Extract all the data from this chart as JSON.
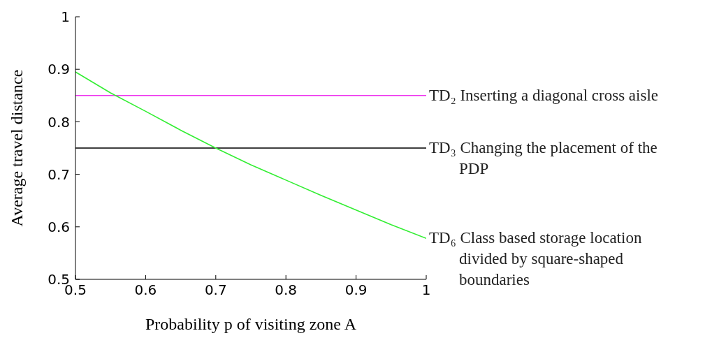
{
  "chart_data": {
    "type": "line",
    "xlabel": "Probability p of visiting zone A",
    "ylabel": "Average travel distance",
    "xlim": [
      0.5,
      1
    ],
    "ylim": [
      0.5,
      1
    ],
    "xticks": [
      0.5,
      0.6,
      0.7,
      0.8,
      0.9,
      1
    ],
    "yticks": [
      0.5,
      0.6,
      0.7,
      0.8,
      0.9,
      1
    ],
    "marker": "none",
    "line_style": "solid",
    "series": [
      {
        "name": "TD₂ Inserting a diagonal cross aisle",
        "color": "#ee33ee",
        "x": [
          0.5,
          1
        ],
        "values": [
          0.85,
          0.85
        ]
      },
      {
        "name": "TD₃ Changing the placement of the PDP",
        "color": "#000000",
        "x": [
          0.5,
          1
        ],
        "values": [
          0.75,
          0.75
        ]
      },
      {
        "name": "TD₆ Class based storage location divided by square-shaped boundaries",
        "color": "#33ee33",
        "x": [
          0.5,
          0.55,
          0.6,
          0.65,
          0.7,
          0.75,
          0.8,
          0.85,
          0.9,
          0.95,
          1
        ],
        "values": [
          0.895,
          0.855,
          0.82,
          0.784,
          0.75,
          0.718,
          0.689,
          0.66,
          0.632,
          0.604,
          0.578
        ]
      }
    ]
  }
}
